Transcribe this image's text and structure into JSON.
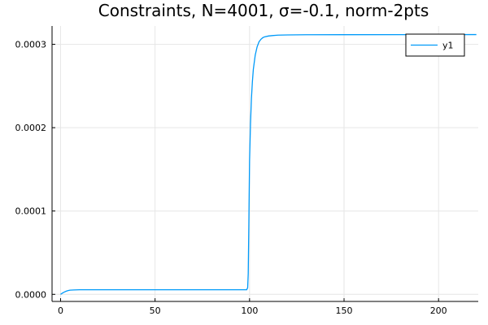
{
  "chart_data": {
    "type": "line",
    "title": "Constraints, N=4001, σ=-0.1, norm-2pts",
    "xlabel": "",
    "ylabel": "",
    "xlim": [
      -4.5,
      221
    ],
    "ylim": [
      -8.5e-06,
      0.000322
    ],
    "x_ticks": [
      0,
      50,
      100,
      150,
      200
    ],
    "x_tick_labels": [
      "0",
      "50",
      "100",
      "150",
      "200"
    ],
    "y_ticks": [
      0,
      0.0001,
      0.0002,
      0.0003
    ],
    "y_tick_labels": [
      "0.0000",
      "0.0001",
      "0.0002",
      "0.0003"
    ],
    "grid": true,
    "legend_position": "top-right",
    "series": [
      {
        "name": "y1",
        "color": "#009af9",
        "x": [
          0,
          1,
          2,
          3,
          4,
          5,
          7,
          10,
          20,
          50,
          90,
          98.5,
          99.0,
          99.3,
          99.6,
          100.0,
          100.5,
          101.0,
          101.5,
          102.0,
          103.0,
          104.0,
          105.0,
          106.0,
          107.0,
          108.0,
          110.0,
          112.0,
          115.0,
          120.0,
          130.0,
          150.0,
          200.0,
          220.0
        ],
        "values": [
          0,
          1.5e-06,
          2.8e-06,
          3.8e-06,
          4.5e-06,
          5e-06,
          5.3e-06,
          5.5e-06,
          5.5e-06,
          5.5e-06,
          5.5e-06,
          5.5e-06,
          8e-06,
          2.5e-05,
          8e-05,
          0.00016,
          0.000205,
          0.000235,
          0.000255,
          0.00027,
          0.000287,
          0.000297,
          0.000303,
          0.000306,
          0.000308,
          0.000309,
          0.00031,
          0.0003105,
          0.000311,
          0.0003113,
          0.0003115,
          0.0003116,
          0.0003117,
          0.0003117
        ]
      }
    ]
  }
}
